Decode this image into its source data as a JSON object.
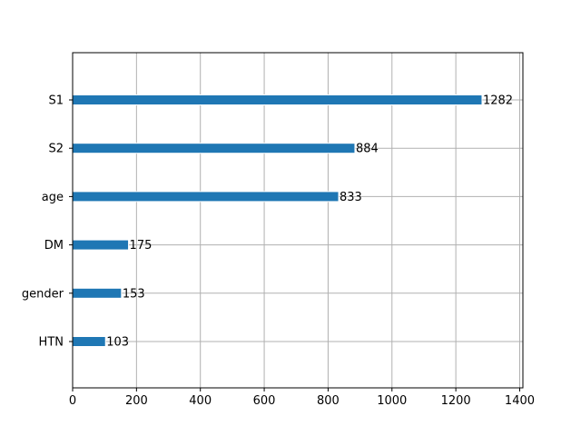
{
  "chart_data": {
    "type": "bar",
    "orientation": "horizontal",
    "title": "",
    "xlabel": "",
    "ylabel": "",
    "categories": [
      "S1",
      "S2",
      "age",
      "DM",
      "gender",
      "HTN"
    ],
    "values": [
      1282,
      884,
      833,
      175,
      153,
      103
    ],
    "data_labels": [
      "1282",
      "884",
      "833",
      "175",
      "153",
      "103"
    ],
    "xlim": [
      0,
      1410
    ],
    "xticks": [
      0,
      200,
      400,
      600,
      800,
      1000,
      1200,
      1400
    ],
    "xtick_labels": [
      "0",
      "200",
      "400",
      "600",
      "800",
      "1000",
      "1200",
      "1400"
    ],
    "grid": true,
    "legend": false,
    "colors": {
      "bar": "#1f77b4",
      "bar_edge": "#ffffff",
      "grid": "#b0b0b0",
      "axis": "#000000"
    }
  }
}
